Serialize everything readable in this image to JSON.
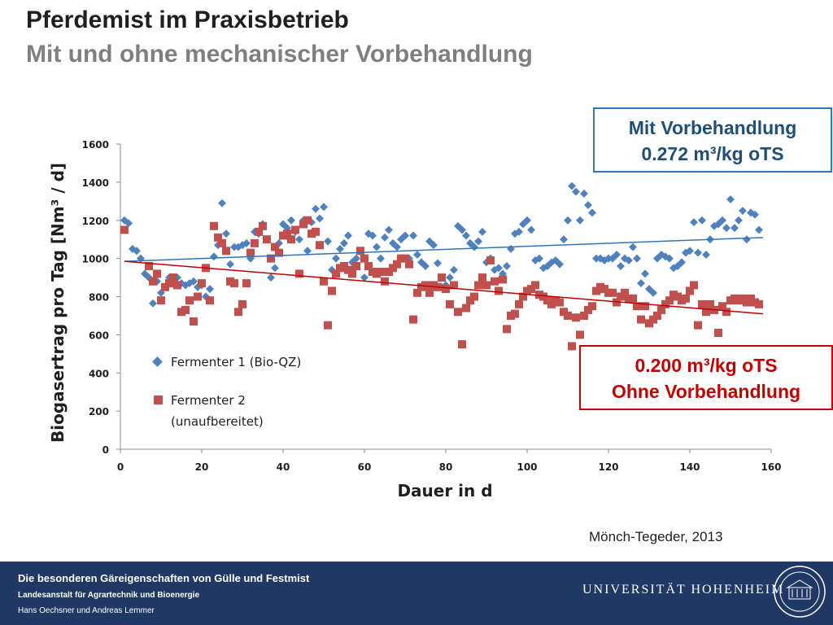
{
  "header": {
    "title": "Pferdemist im Praxisbetrieb",
    "subtitle": "Mit und ohne mechanischer Vorbehandlung"
  },
  "callouts": {
    "with": {
      "line1": "Mit Vorbehandlung",
      "line2": "0.272 m³/kg oTS"
    },
    "without": {
      "line1": "0.200 m³/kg oTS",
      "line2": "Ohne Vorbehandlung"
    }
  },
  "source": "Mönch-Tegeder, 2013",
  "footer": {
    "line1": "Die besonderen Gäreigenschaften von Gülle und Festmist",
    "line2": "Landesanstalt für Agrartechnik und Bioenergie",
    "line3": "Hans Oechsner  und  Andreas Lemmer",
    "university": "UNIVERSITÄT HOHENHEIM"
  },
  "colors": {
    "series1": "#4f81bd",
    "series2": "#c0504d",
    "trend1": "#2e75b6",
    "trend2": "#c00000",
    "footer_bg": "#1f3864"
  },
  "chart_data": {
    "type": "scatter",
    "xlabel": "Dauer in d",
    "ylabel": "Biogasertrag pro Tag [Nm³ / d]",
    "xlim": [
      0,
      160
    ],
    "ylim": [
      0,
      1600
    ],
    "xticks": [
      0,
      20,
      40,
      60,
      80,
      100,
      120,
      140,
      160
    ],
    "yticks": [
      0,
      200,
      400,
      600,
      800,
      1000,
      1200,
      1400,
      1600
    ],
    "legend": "left-center",
    "series": [
      {
        "name": "Fermenter 1 (Bio-QZ)",
        "marker": "diamond",
        "points": [
          [
            1,
            1200
          ],
          [
            2,
            1185
          ],
          [
            3,
            1050
          ],
          [
            4,
            1040
          ],
          [
            5,
            1000
          ],
          [
            6,
            920
          ],
          [
            7,
            900
          ],
          [
            8,
            765
          ],
          [
            9,
            880
          ],
          [
            10,
            820
          ],
          [
            11,
            850
          ],
          [
            12,
            900
          ],
          [
            13,
            880
          ],
          [
            14,
            900
          ],
          [
            15,
            870
          ],
          [
            16,
            860
          ],
          [
            17,
            870
          ],
          [
            18,
            880
          ],
          [
            19,
            850
          ],
          [
            20,
            860
          ],
          [
            21,
            800
          ],
          [
            22,
            840
          ],
          [
            23,
            1010
          ],
          [
            24,
            1070
          ],
          [
            25,
            1290
          ],
          [
            26,
            1130
          ],
          [
            27,
            970
          ],
          [
            28,
            1060
          ],
          [
            29,
            1060
          ],
          [
            30,
            1070
          ],
          [
            31,
            1080
          ],
          [
            32,
            1000
          ],
          [
            33,
            1140
          ],
          [
            34,
            1130
          ],
          [
            35,
            1180
          ],
          [
            36,
            1100
          ],
          [
            37,
            900
          ],
          [
            38,
            950
          ],
          [
            39,
            1080
          ],
          [
            40,
            1180
          ],
          [
            41,
            1160
          ],
          [
            42,
            1200
          ],
          [
            43,
            1140
          ],
          [
            44,
            1100
          ],
          [
            45,
            1200
          ],
          [
            46,
            1040
          ],
          [
            47,
            1190
          ],
          [
            48,
            1260
          ],
          [
            49,
            1210
          ],
          [
            50,
            1270
          ],
          [
            51,
            1090
          ],
          [
            52,
            940
          ],
          [
            53,
            1000
          ],
          [
            54,
            1050
          ],
          [
            55,
            1080
          ],
          [
            56,
            1120
          ],
          [
            57,
            980
          ],
          [
            58,
            1000
          ],
          [
            59,
            1040
          ],
          [
            60,
            900
          ],
          [
            61,
            1130
          ],
          [
            62,
            1120
          ],
          [
            63,
            1060
          ],
          [
            64,
            1000
          ],
          [
            65,
            1110
          ],
          [
            66,
            1150
          ],
          [
            67,
            1080
          ],
          [
            68,
            1060
          ],
          [
            69,
            1100
          ],
          [
            70,
            1120
          ],
          [
            71,
            1000
          ],
          [
            72,
            1120
          ],
          [
            73,
            1020
          ],
          [
            74,
            980
          ],
          [
            75,
            960
          ],
          [
            76,
            1090
          ],
          [
            77,
            1070
          ],
          [
            78,
            975
          ],
          [
            79,
            850
          ],
          [
            80,
            860
          ],
          [
            81,
            900
          ],
          [
            82,
            940
          ],
          [
            83,
            1170
          ],
          [
            84,
            1150
          ],
          [
            85,
            1120
          ],
          [
            86,
            1080
          ],
          [
            87,
            1060
          ],
          [
            88,
            1090
          ],
          [
            89,
            1140
          ],
          [
            90,
            980
          ],
          [
            91,
            1000
          ],
          [
            92,
            940
          ],
          [
            93,
            950
          ],
          [
            94,
            920
          ],
          [
            95,
            960
          ],
          [
            96,
            1050
          ],
          [
            97,
            1130
          ],
          [
            98,
            1140
          ],
          [
            99,
            1180
          ],
          [
            100,
            1200
          ],
          [
            101,
            1150
          ],
          [
            102,
            990
          ],
          [
            103,
            1000
          ],
          [
            104,
            950
          ],
          [
            105,
            960
          ],
          [
            106,
            980
          ],
          [
            107,
            990
          ],
          [
            108,
            970
          ],
          [
            109,
            1100
          ],
          [
            110,
            1200
          ],
          [
            111,
            1380
          ],
          [
            112,
            1350
          ],
          [
            113,
            1200
          ],
          [
            114,
            1340
          ],
          [
            115,
            1280
          ],
          [
            116,
            1240
          ],
          [
            117,
            1000
          ],
          [
            118,
            1000
          ],
          [
            119,
            990
          ],
          [
            120,
            1000
          ],
          [
            121,
            1000
          ],
          [
            122,
            1020
          ],
          [
            123,
            960
          ],
          [
            124,
            1000
          ],
          [
            125,
            990
          ],
          [
            126,
            1060
          ],
          [
            127,
            1000
          ],
          [
            128,
            870
          ],
          [
            129,
            920
          ],
          [
            130,
            840
          ],
          [
            131,
            820
          ],
          [
            132,
            1000
          ],
          [
            133,
            1020
          ],
          [
            134,
            1010
          ],
          [
            135,
            1000
          ],
          [
            136,
            950
          ],
          [
            137,
            960
          ],
          [
            138,
            980
          ],
          [
            139,
            1030
          ],
          [
            140,
            1040
          ],
          [
            141,
            1190
          ],
          [
            142,
            1030
          ],
          [
            143,
            1200
          ],
          [
            144,
            1020
          ],
          [
            145,
            1100
          ],
          [
            146,
            1170
          ],
          [
            147,
            1180
          ],
          [
            148,
            1200
          ],
          [
            149,
            1160
          ],
          [
            150,
            1310
          ],
          [
            151,
            1160
          ],
          [
            152,
            1200
          ],
          [
            153,
            1250
          ],
          [
            154,
            1100
          ],
          [
            155,
            1240
          ],
          [
            156,
            1230
          ],
          [
            157,
            1150
          ]
        ]
      },
      {
        "name": "Fermenter 2 (unaufbereitet)",
        "marker": "square",
        "points": [
          [
            1,
            1150
          ],
          [
            7,
            960
          ],
          [
            8,
            880
          ],
          [
            9,
            920
          ],
          [
            10,
            780
          ],
          [
            11,
            850
          ],
          [
            12,
            870
          ],
          [
            13,
            900
          ],
          [
            14,
            860
          ],
          [
            15,
            720
          ],
          [
            16,
            730
          ],
          [
            17,
            780
          ],
          [
            18,
            670
          ],
          [
            19,
            800
          ],
          [
            20,
            870
          ],
          [
            21,
            950
          ],
          [
            22,
            780
          ],
          [
            23,
            1170
          ],
          [
            24,
            1110
          ],
          [
            25,
            1080
          ],
          [
            26,
            1040
          ],
          [
            27,
            880
          ],
          [
            28,
            870
          ],
          [
            29,
            720
          ],
          [
            30,
            760
          ],
          [
            31,
            870
          ],
          [
            32,
            1030
          ],
          [
            33,
            1080
          ],
          [
            34,
            1140
          ],
          [
            35,
            1170
          ],
          [
            36,
            1100
          ],
          [
            37,
            1000
          ],
          [
            38,
            1060
          ],
          [
            39,
            1030
          ],
          [
            40,
            1120
          ],
          [
            41,
            1130
          ],
          [
            42,
            1100
          ],
          [
            43,
            1150
          ],
          [
            44,
            920
          ],
          [
            45,
            1180
          ],
          [
            46,
            1200
          ],
          [
            47,
            1130
          ],
          [
            48,
            1140
          ],
          [
            49,
            1070
          ],
          [
            50,
            880
          ],
          [
            51,
            650
          ],
          [
            52,
            830
          ],
          [
            53,
            920
          ],
          [
            54,
            950
          ],
          [
            55,
            960
          ],
          [
            56,
            940
          ],
          [
            57,
            920
          ],
          [
            58,
            960
          ],
          [
            59,
            1040
          ],
          [
            60,
            1000
          ],
          [
            61,
            960
          ],
          [
            62,
            930
          ],
          [
            63,
            920
          ],
          [
            64,
            930
          ],
          [
            65,
            880
          ],
          [
            66,
            930
          ],
          [
            67,
            950
          ],
          [
            68,
            970
          ],
          [
            69,
            1000
          ],
          [
            70,
            1000
          ],
          [
            71,
            970
          ],
          [
            72,
            680
          ],
          [
            73,
            820
          ],
          [
            74,
            850
          ],
          [
            75,
            860
          ],
          [
            76,
            820
          ],
          [
            77,
            860
          ],
          [
            78,
            850
          ],
          [
            79,
            900
          ],
          [
            80,
            840
          ],
          [
            81,
            760
          ],
          [
            82,
            860
          ],
          [
            83,
            720
          ],
          [
            84,
            550
          ],
          [
            85,
            740
          ],
          [
            86,
            780
          ],
          [
            87,
            800
          ],
          [
            88,
            860
          ],
          [
            89,
            900
          ],
          [
            90,
            860
          ],
          [
            91,
            990
          ],
          [
            92,
            880
          ],
          [
            93,
            830
          ],
          [
            94,
            890
          ],
          [
            95,
            630
          ],
          [
            96,
            700
          ],
          [
            97,
            710
          ],
          [
            98,
            760
          ],
          [
            99,
            800
          ],
          [
            100,
            830
          ],
          [
            101,
            840
          ],
          [
            102,
            860
          ],
          [
            103,
            810
          ],
          [
            104,
            800
          ],
          [
            105,
            780
          ],
          [
            106,
            760
          ],
          [
            107,
            780
          ],
          [
            108,
            770
          ],
          [
            109,
            720
          ],
          [
            110,
            700
          ],
          [
            111,
            540
          ],
          [
            112,
            690
          ],
          [
            113,
            600
          ],
          [
            114,
            700
          ],
          [
            115,
            730
          ],
          [
            116,
            750
          ],
          [
            117,
            830
          ],
          [
            118,
            850
          ],
          [
            119,
            840
          ],
          [
            120,
            820
          ],
          [
            121,
            820
          ],
          [
            122,
            770
          ],
          [
            123,
            800
          ],
          [
            124,
            820
          ],
          [
            125,
            790
          ],
          [
            126,
            790
          ],
          [
            127,
            750
          ],
          [
            128,
            680
          ],
          [
            129,
            750
          ],
          [
            130,
            660
          ],
          [
            131,
            680
          ],
          [
            132,
            700
          ],
          [
            133,
            730
          ],
          [
            134,
            760
          ],
          [
            135,
            780
          ],
          [
            136,
            810
          ],
          [
            137,
            800
          ],
          [
            138,
            780
          ],
          [
            139,
            790
          ],
          [
            140,
            830
          ],
          [
            141,
            860
          ],
          [
            142,
            650
          ],
          [
            143,
            760
          ],
          [
            144,
            720
          ],
          [
            145,
            760
          ],
          [
            146,
            730
          ],
          [
            147,
            610
          ],
          [
            148,
            750
          ],
          [
            149,
            720
          ],
          [
            150,
            780
          ],
          [
            151,
            790
          ],
          [
            152,
            780
          ],
          [
            153,
            790
          ],
          [
            154,
            770
          ],
          [
            155,
            790
          ],
          [
            156,
            770
          ],
          [
            157,
            760
          ]
        ]
      }
    ],
    "trendlines": [
      {
        "series": "Fermenter 1 (Bio-QZ)",
        "from": [
          1,
          985
        ],
        "to": [
          158,
          1110
        ]
      },
      {
        "series": "Fermenter 2 (unaufbereitet)",
        "from": [
          1,
          985
        ],
        "to": [
          158,
          710
        ]
      }
    ]
  }
}
